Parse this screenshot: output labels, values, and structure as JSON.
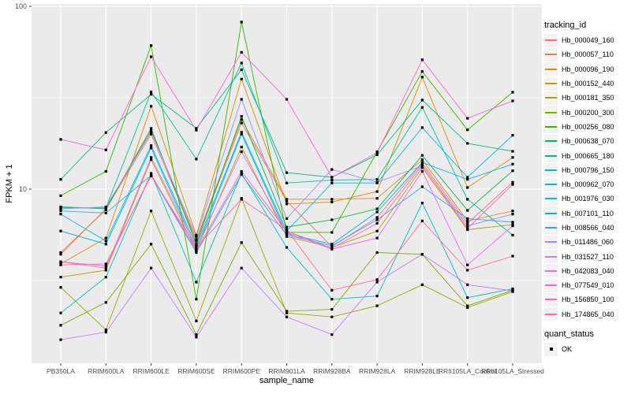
{
  "chart_data": {
    "type": "line",
    "title": "",
    "xlabel": "sample_name",
    "ylabel": "FPKM + 1",
    "yscale": "log10",
    "ylim": [
      1.12,
      102
    ],
    "yticks": [
      {
        "label": "100",
        "value": 100
      },
      {
        "label": "10",
        "value": 10
      }
    ],
    "minor_gridlines": [
      31.62,
      3.162
    ],
    "grid": "on",
    "legend_position": "right",
    "panel_bg": "#EBEBEB",
    "grid_color": "#FFFFFF",
    "point_marker": {
      "shape": "square",
      "color": "#000000",
      "size": 3.2
    },
    "categories": [
      "PB350LA",
      "RRIM600LA",
      "RRIM600LE",
      "RRIM600SE",
      "RRIM600PE",
      "RRIM901LA",
      "RRIM928BA",
      "RRIM928LA",
      "RRIM928LE",
      "RRII105LA_Control",
      "RRII105LA_Stressed"
    ],
    "series": [
      {
        "name": "Hb_000049_160",
        "color": "#F8766D",
        "values": [
          4.4,
          7.8,
          20.0,
          5.2,
          23.0,
          8.6,
          4.85,
          7.0,
          13.8,
          6.5,
          10.9
        ]
      },
      {
        "name": "Hb_000057_110",
        "color": "#EA8331",
        "values": [
          4.5,
          7.7,
          21.0,
          5.3,
          24.0,
          8.8,
          8.8,
          8.9,
          14.5,
          6.7,
          7.6
        ]
      },
      {
        "name": "Hb_000096_190",
        "color": "#D89000",
        "values": [
          3.9,
          5.4,
          28.4,
          5.6,
          40.0,
          8.3,
          8.5,
          9.7,
          41.0,
          10.2,
          14.9
        ]
      },
      {
        "name": "Hb_000152_440",
        "color": "#C09B00",
        "values": [
          3.3,
          3.6,
          14.5,
          4.6,
          17.0,
          5.5,
          4.8,
          5.9,
          13.1,
          6.0,
          6.4
        ]
      },
      {
        "name": "Hb_000181_350",
        "color": "#A3A500",
        "values": [
          2.9,
          1.7,
          7.6,
          1.9,
          8.9,
          2.1,
          2.0,
          2.3,
          3.0,
          2.25,
          2.75
        ]
      },
      {
        "name": "Hb_000200_300",
        "color": "#7CAE00",
        "values": [
          1.8,
          2.4,
          5.0,
          1.6,
          5.1,
          2.15,
          2.2,
          4.5,
          4.4,
          2.3,
          2.8
        ]
      },
      {
        "name": "Hb_000256_080",
        "color": "#39B600",
        "values": [
          9.2,
          12.5,
          61.0,
          2.5,
          82.0,
          5.8,
          5.8,
          16.0,
          44.0,
          21.1,
          33.9
        ]
      },
      {
        "name": "Hb_000638_070",
        "color": "#00BB4E",
        "values": [
          8.0,
          7.8,
          21.5,
          5.0,
          25.0,
          6.2,
          6.8,
          7.8,
          15.3,
          7.65,
          12.6
        ]
      },
      {
        "name": "Hb_000665_180",
        "color": "#00BF7D",
        "values": [
          11.3,
          20.4,
          33.0,
          21.5,
          45.0,
          12.3,
          11.6,
          15.4,
          30.7,
          17.8,
          16.1
        ]
      },
      {
        "name": "Hb_000796_150",
        "color": "#00C1A3",
        "values": [
          7.9,
          7.9,
          34.0,
          14.6,
          49.0,
          10.8,
          11.2,
          11.3,
          28.0,
          8.8,
          5.6
        ]
      },
      {
        "name": "Hb_000962_070",
        "color": "#00BFC4",
        "values": [
          2.1,
          3.3,
          12.2,
          3.1,
          12.2,
          4.8,
          2.5,
          2.6,
          8.4,
          2.55,
          2.85
        ]
      },
      {
        "name": "Hb_001976_030",
        "color": "#00BAE0",
        "values": [
          7.3,
          5.2,
          17.3,
          4.9,
          20.5,
          5.9,
          10.8,
          10.8,
          21.7,
          11.6,
          19.7
        ]
      },
      {
        "name": "Hb_007101_110",
        "color": "#00B0F6",
        "values": [
          5.9,
          5.0,
          16.8,
          4.7,
          20.0,
          5.7,
          5.0,
          7.5,
          14.0,
          11.3,
          13.7
        ]
      },
      {
        "name": "Hb_008566_040",
        "color": "#35A2FF",
        "values": [
          7.6,
          7.4,
          11.9,
          4.5,
          12.0,
          5.6,
          4.9,
          6.8,
          10.3,
          6.9,
          6.6
        ]
      },
      {
        "name": "Hb_011486_060",
        "color": "#9590FF",
        "values": [
          7.8,
          8.0,
          20.5,
          5.5,
          31.0,
          6.9,
          12.8,
          10.9,
          13.4,
          6.3,
          7.3
        ]
      },
      {
        "name": "Hb_031527_110",
        "color": "#C77CFF",
        "values": [
          1.5,
          1.65,
          3.7,
          1.55,
          3.7,
          2.0,
          1.6,
          3.1,
          4.4,
          3.0,
          2.78
        ]
      },
      {
        "name": "Hb_042083_040",
        "color": "#E76BF3",
        "values": [
          4.0,
          3.7,
          14.9,
          4.8,
          16.0,
          5.8,
          4.7,
          5.4,
          12.5,
          3.85,
          6.3
        ]
      },
      {
        "name": "Hb_077549_010",
        "color": "#FA62DB",
        "values": [
          18.7,
          16.4,
          53.0,
          21.0,
          56.0,
          31.0,
          11.6,
          15.8,
          51.0,
          24.4,
          30.4
        ]
      },
      {
        "name": "Hb_156850_100",
        "color": "#FF62BC",
        "values": [
          4.0,
          3.8,
          12.0,
          4.6,
          12.5,
          5.9,
          4.75,
          6.5,
          13.5,
          6.1,
          10.6
        ]
      },
      {
        "name": "Hb_174865_040",
        "color": "#FF6A98",
        "values": [
          3.85,
          3.9,
          11.8,
          4.8,
          8.8,
          6.0,
          2.8,
          3.2,
          6.7,
          3.6,
          4.3
        ]
      }
    ]
  },
  "legend": {
    "tracking_title": "tracking_id",
    "quant_title": "quant_status",
    "quant_items": [
      {
        "label": "OK"
      }
    ]
  }
}
